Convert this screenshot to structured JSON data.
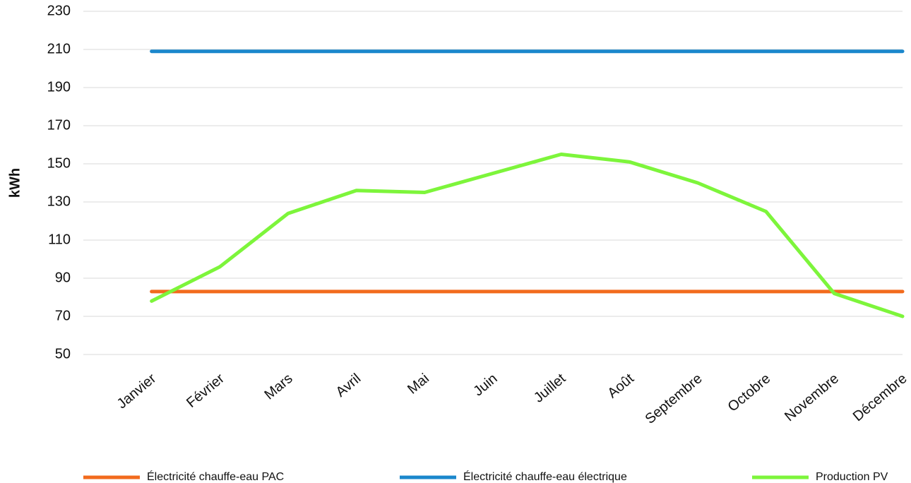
{
  "chart_data": {
    "type": "line",
    "y_label": "kWh",
    "categories": [
      "Janvier",
      "Février",
      "Mars",
      "Avril",
      "Mai",
      "Juin",
      "Juillet",
      "Août",
      "Septembre",
      "Octobre",
      "Novembre",
      "Décembre"
    ],
    "series": [
      {
        "name": "Électricité chauffe-eau PAC",
        "color": "#f26b1d",
        "values": [
          83,
          83,
          83,
          83,
          83,
          83,
          83,
          83,
          83,
          83,
          83,
          83
        ]
      },
      {
        "name": "Électricité chauffe-eau électrique",
        "color": "#1b87cc",
        "values": [
          209,
          209,
          209,
          209,
          209,
          209,
          209,
          209,
          209,
          209,
          209,
          209
        ]
      },
      {
        "name": "Production PV",
        "color": "#7df53b",
        "values": [
          78,
          96,
          124,
          136,
          135,
          145,
          155,
          151,
          140,
          125,
          82,
          70
        ]
      }
    ],
    "ylim": [
      50,
      230
    ],
    "yticks": [
      50,
      70,
      90,
      110,
      130,
      150,
      170,
      190,
      210,
      230
    ],
    "grid": true,
    "legend": "bottom"
  }
}
